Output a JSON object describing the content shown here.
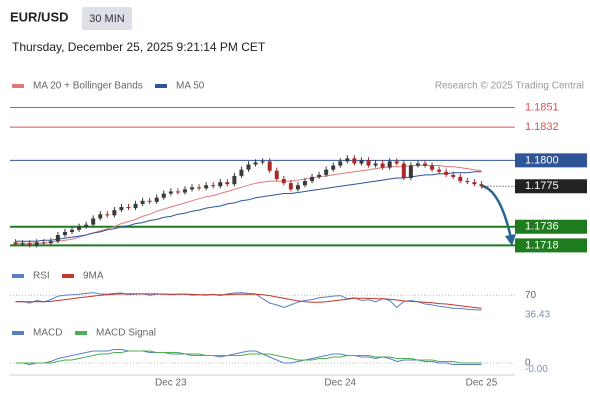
{
  "header": {
    "symbol": "EUR/USD",
    "timeframe": "30 MIN",
    "datetime": "Thursday, December 25, 2025 9:21:14 PM CET",
    "credit": "Research © 2025 Trading Central"
  },
  "chart_data": [
    {
      "type": "candlestick",
      "categories": [
        null,
        null,
        null,
        null,
        null,
        null,
        null,
        null,
        null,
        null,
        null,
        null,
        null,
        null,
        null,
        null,
        null,
        null,
        null,
        null,
        null,
        null,
        "Dec 23",
        null,
        null,
        null,
        null,
        null,
        null,
        null,
        null,
        null,
        null,
        null,
        null,
        null,
        null,
        null,
        null,
        null,
        null,
        null,
        null,
        null,
        null,
        null,
        "Dec 24",
        null,
        null,
        null,
        null,
        null,
        null,
        null,
        null,
        null,
        null,
        null,
        null,
        null,
        null,
        null,
        null,
        null,
        null,
        null,
        "Dec 25"
      ],
      "open": [
        1.1721,
        1.1719,
        1.172,
        1.1718,
        1.1721,
        1.172,
        1.1722,
        1.1728,
        1.1731,
        1.1733,
        1.1736,
        1.1738,
        1.1744,
        1.1748,
        1.1747,
        1.1752,
        1.1755,
        1.1754,
        1.1758,
        1.1761,
        1.176,
        1.1764,
        1.1768,
        1.177,
        1.1769,
        1.1772,
        1.1774,
        1.1773,
        1.1776,
        1.1775,
        1.1779,
        1.1777,
        1.1785,
        1.1791,
        1.1796,
        1.1798,
        1.1799,
        1.179,
        1.1782,
        1.1778,
        1.1772,
        1.1776,
        1.178,
        1.1784,
        1.1786,
        1.1791,
        1.1795,
        1.1799,
        1.1802,
        1.1797,
        1.18,
        1.1795,
        1.1797,
        1.1793,
        1.1799,
        1.1797,
        1.1783,
        1.1795,
        1.1797,
        1.1795,
        1.1791,
        1.1789,
        1.1786,
        1.1784,
        1.178,
        1.1779,
        1.1777
      ],
      "high": [
        1.1724,
        1.1723,
        1.1723,
        1.1724,
        1.1724,
        1.1725,
        1.1731,
        1.1734,
        1.1736,
        1.1739,
        1.1741,
        1.1747,
        1.1751,
        1.1751,
        1.1755,
        1.1758,
        1.1758,
        1.1761,
        1.1764,
        1.1764,
        1.1767,
        1.1771,
        1.1773,
        1.1773,
        1.1775,
        1.1777,
        1.1777,
        1.1779,
        1.1779,
        1.1782,
        1.1782,
        1.1788,
        1.1794,
        1.1799,
        1.1801,
        1.1802,
        1.1802,
        1.1793,
        1.1785,
        1.1781,
        1.1779,
        1.1783,
        1.1787,
        1.1789,
        1.1794,
        1.1798,
        1.1802,
        1.1805,
        1.1805,
        1.1803,
        1.1803,
        1.18,
        1.18,
        1.1802,
        1.1802,
        1.18,
        1.1798,
        1.18,
        1.18,
        1.1798,
        1.1794,
        1.1792,
        1.1789,
        1.1787,
        1.1783,
        1.1782,
        1.178
      ],
      "low": [
        1.1717,
        1.1717,
        1.1716,
        1.1716,
        1.1718,
        1.1718,
        1.172,
        1.1726,
        1.1729,
        1.1731,
        1.1734,
        1.1736,
        1.1742,
        1.1745,
        1.1745,
        1.175,
        1.1752,
        1.1752,
        1.1756,
        1.1758,
        1.1758,
        1.1762,
        1.1766,
        1.1767,
        1.1767,
        1.177,
        1.1771,
        1.1771,
        1.1773,
        1.1773,
        1.1775,
        1.1775,
        1.1783,
        1.1789,
        1.1794,
        1.1796,
        1.1788,
        1.178,
        1.1776,
        1.177,
        1.177,
        1.1774,
        1.1778,
        1.1782,
        1.1784,
        1.1789,
        1.1793,
        1.1797,
        1.1795,
        1.1795,
        1.1793,
        1.1793,
        1.1791,
        1.1791,
        1.1795,
        1.1781,
        1.1781,
        1.1793,
        1.1793,
        1.1789,
        1.1787,
        1.1784,
        1.1782,
        1.1778,
        1.1777,
        1.1775,
        1.1773
      ],
      "close": [
        1.1719,
        1.172,
        1.1718,
        1.1721,
        1.172,
        1.1722,
        1.1728,
        1.1731,
        1.1733,
        1.1736,
        1.1738,
        1.1744,
        1.1748,
        1.1747,
        1.1752,
        1.1755,
        1.1754,
        1.1758,
        1.1761,
        1.176,
        1.1764,
        1.1768,
        1.177,
        1.1769,
        1.1772,
        1.1774,
        1.1773,
        1.1776,
        1.1775,
        1.1779,
        1.1777,
        1.1785,
        1.1791,
        1.1796,
        1.1798,
        1.1799,
        1.179,
        1.1782,
        1.1778,
        1.1772,
        1.1776,
        1.178,
        1.1784,
        1.1786,
        1.1791,
        1.1795,
        1.1799,
        1.1802,
        1.1797,
        1.18,
        1.1795,
        1.1797,
        1.1793,
        1.1799,
        1.1797,
        1.1783,
        1.1795,
        1.1797,
        1.1795,
        1.1791,
        1.1789,
        1.1786,
        1.1784,
        1.178,
        1.1779,
        1.1777,
        1.1775
      ],
      "up_color": "#3a3a3a",
      "down_color": "#a52a2a",
      "current_color": "#222222",
      "series": [
        {
          "name": "MA 20 + Bollinger Bands",
          "color": "#e07a7a",
          "values": [
            1.172,
            1.172,
            1.172,
            1.172,
            1.172,
            1.1721,
            1.1722,
            1.1723,
            1.1724,
            1.1726,
            1.1728,
            1.173,
            1.1732,
            1.1734,
            1.1736,
            1.1739,
            1.1741,
            1.1743,
            1.1746,
            1.1748,
            1.1751,
            1.1753,
            1.1755,
            1.1757,
            1.1759,
            1.1761,
            1.1763,
            1.1765,
            1.1766,
            1.1768,
            1.177,
            1.1772,
            1.1774,
            1.1776,
            1.1778,
            1.1779,
            1.178,
            1.178,
            1.178,
            1.178,
            1.1781,
            1.1782,
            1.1783,
            1.1784,
            1.1785,
            1.1786,
            1.1787,
            1.1788,
            1.1789,
            1.179,
            1.1791,
            1.1792,
            1.1793,
            1.1794,
            1.1794,
            1.1794,
            1.1795,
            1.1795,
            1.1795,
            1.1795,
            1.1795,
            1.1794,
            1.1794,
            1.1793,
            1.1792,
            1.1791,
            1.179
          ]
        },
        {
          "name": "MA 50",
          "color": "#2f5597",
          "values": [
            1.1722,
            1.1722,
            1.1722,
            1.1722,
            1.1723,
            1.1723,
            1.1724,
            1.1725,
            1.1726,
            1.1727,
            1.1728,
            1.173,
            1.1731,
            1.1733,
            1.1734,
            1.1736,
            1.1737,
            1.1739,
            1.174,
            1.1742,
            1.1743,
            1.1745,
            1.1746,
            1.1748,
            1.1749,
            1.1751,
            1.1752,
            1.1754,
            1.1755,
            1.1756,
            1.1758,
            1.1759,
            1.1761,
            1.1762,
            1.1764,
            1.1765,
            1.1766,
            1.1767,
            1.1768,
            1.1768,
            1.1769,
            1.177,
            1.1771,
            1.1772,
            1.1773,
            1.1774,
            1.1775,
            1.1776,
            1.1777,
            1.1778,
            1.1779,
            1.178,
            1.1781,
            1.1782,
            1.1783,
            1.1783,
            1.1784,
            1.1785,
            1.1786,
            1.1786,
            1.1787,
            1.1787,
            1.1788,
            1.1788,
            1.1788,
            1.1789,
            1.1789
          ]
        }
      ],
      "ylim": [
        1.1702,
        1.1863
      ],
      "levels": [
        {
          "value": 1.1851,
          "color": "#d9534f",
          "width": 1,
          "box": false
        },
        {
          "value": 1.1832,
          "color": "#d9534f",
          "width": 1,
          "box": false
        },
        {
          "value": 1.18,
          "label": "1.1800",
          "color": "#2f5597",
          "width": 1,
          "box": true
        },
        {
          "value": 1.1736,
          "color": "#1e7b1e",
          "width": 2,
          "box": true
        },
        {
          "value": 1.1718,
          "color": "#1e7b1e",
          "width": 2,
          "box": true
        }
      ]
    },
    {
      "type": "line",
      "series": [
        {
          "name": "RSI",
          "color": "#5b7fc4",
          "values": [
            55,
            56,
            52,
            58,
            55,
            60,
            68,
            70,
            71,
            72,
            74,
            76,
            73,
            72,
            74,
            75,
            71,
            72,
            73,
            70,
            72,
            73,
            71,
            72,
            73,
            70,
            71,
            70,
            72,
            69,
            73,
            75,
            76,
            74,
            73,
            62,
            52,
            48,
            42,
            48,
            54,
            58,
            60,
            64,
            66,
            68,
            69,
            62,
            64,
            58,
            60,
            55,
            62,
            58,
            42,
            56,
            58,
            55,
            50,
            48,
            45,
            43,
            40,
            40,
            38,
            37,
            36.43
          ]
        },
        {
          "name": "9MA",
          "color": "#c0392b",
          "values": [
            55,
            55,
            55,
            55,
            55,
            56,
            58,
            60,
            62,
            64,
            66,
            68,
            70,
            71,
            72,
            73,
            73,
            73,
            73,
            73,
            73,
            72,
            72,
            72,
            72,
            72,
            71,
            71,
            71,
            71,
            71,
            72,
            72,
            72,
            72,
            71,
            69,
            66,
            63,
            60,
            57,
            55,
            54,
            54,
            55,
            57,
            59,
            61,
            63,
            63,
            63,
            62,
            62,
            61,
            59,
            57,
            56,
            55,
            54,
            53,
            51,
            50,
            48,
            46,
            44,
            42,
            40
          ]
        }
      ],
      "ylim": [
        0,
        100
      ],
      "yticks": [
        70
      ]
    },
    {
      "type": "line",
      "series": [
        {
          "name": "MACD",
          "color": "#5b7fc4",
          "values": [
            0,
            0,
            -0.0001,
            0,
            0,
            0.0001,
            0.0003,
            0.0004,
            0.0005,
            0.0006,
            0.0007,
            0.0008,
            0.0008,
            0.0008,
            0.0009,
            0.0009,
            0.0008,
            0.0008,
            0.0008,
            0.0007,
            0.0007,
            0.0007,
            0.0006,
            0.0006,
            0.0006,
            0.0005,
            0.0005,
            0.0005,
            0.0005,
            0.0004,
            0.0005,
            0.0006,
            0.0007,
            0.0008,
            0.0008,
            0.0006,
            0.0004,
            0.0002,
            0,
            0,
            0.0001,
            0.0002,
            0.0003,
            0.0004,
            0.0005,
            0.0006,
            0.0006,
            0.0005,
            0.0005,
            0.0004,
            0.0004,
            0.0003,
            0.0004,
            0.0003,
            0.0001,
            0.0002,
            0.0002,
            0.0002,
            0.0001,
            0.0001,
            0,
            0,
            -0.0001,
            -0.0001,
            -0.0001,
            -0.0001,
            -0.0001
          ],
          "value_labels": [
            null,
            null,
            null,
            null,
            null,
            null,
            null,
            null,
            null,
            null,
            null,
            null,
            null,
            null,
            null,
            null,
            null,
            null,
            null,
            null,
            null,
            null,
            null,
            null,
            null,
            null,
            null,
            null,
            null,
            null,
            null,
            null,
            null,
            null,
            null,
            null,
            null,
            null,
            null,
            null,
            null,
            null,
            null,
            null,
            null,
            null,
            null,
            null,
            null,
            null,
            null,
            null,
            null,
            null,
            null,
            null,
            null,
            null,
            null,
            null,
            null,
            null,
            null,
            null,
            null,
            null,
            "-0.00"
          ]
        },
        {
          "name": "MACD Signal",
          "color": "#4caf50",
          "values": [
            0,
            0,
            0,
            0,
            0,
            0,
            0.0001,
            0.0002,
            0.0002,
            0.0003,
            0.0004,
            0.0005,
            0.0006,
            0.0006,
            0.0007,
            0.0007,
            0.0008,
            0.0008,
            0.0008,
            0.0008,
            0.0007,
            0.0007,
            0.0007,
            0.0007,
            0.0006,
            0.0006,
            0.0006,
            0.0005,
            0.0005,
            0.0005,
            0.0005,
            0.0005,
            0.0005,
            0.0006,
            0.0006,
            0.0006,
            0.0006,
            0.0005,
            0.0004,
            0.0003,
            0.0002,
            0.0002,
            0.0002,
            0.0003,
            0.0003,
            0.0004,
            0.0004,
            0.0005,
            0.0005,
            0.0005,
            0.0005,
            0.0004,
            0.0004,
            0.0004,
            0.0003,
            0.0003,
            0.0003,
            0.0002,
            0.0002,
            0.0002,
            0.0001,
            0.0001,
            0.0001,
            0,
            0,
            0,
            0
          ]
        }
      ],
      "ylim": [
        -0.0006,
        0.0012
      ],
      "yticks": [
        0
      ]
    }
  ]
}
